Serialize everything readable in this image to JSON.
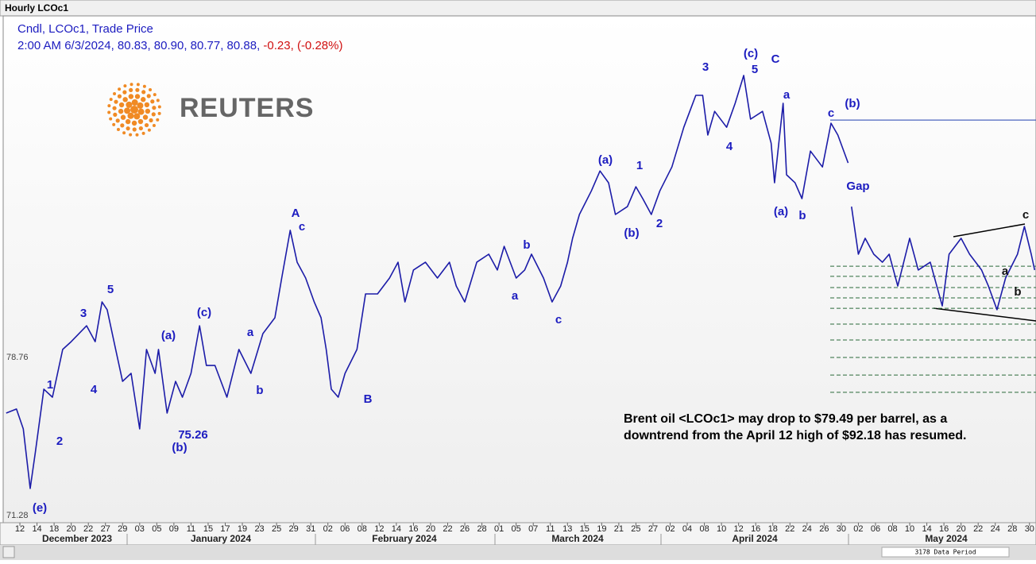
{
  "window_title": "Hourly LCOc1",
  "legend": {
    "name": "Cndl, LCOc1, Trade Price",
    "quote": "2:00 AM 6/3/2024, 80.83, 80.90, 80.77, 80.88,",
    "change": "-0.23, (-0.28%)"
  },
  "logo": "REUTERS",
  "status": "3178 Data Period",
  "chart_data": {
    "type": "line",
    "color": "#1c1ca8",
    "annotation_text": [
      "Brent oil <LCOc1> may drop to $79.49 per barrel, as a",
      "downtrend from the April 12 high of $92.18 has resumed."
    ],
    "wave_labels": [
      "(e)",
      "1",
      "2",
      "3",
      "4",
      "5",
      "(a)",
      "(b)",
      "75.26",
      "(c)",
      "a",
      "b",
      "A",
      "c",
      "B",
      "b",
      "a",
      "c",
      "(a)",
      "(b)",
      "1",
      "2",
      "3",
      "(c)",
      "5",
      "C",
      "4",
      "a",
      "c",
      "(b)",
      "(a)",
      "b",
      "Gap",
      "c",
      "a",
      "b"
    ],
    "months": [
      "December 2023",
      "January 2024",
      "February 2024",
      "March 2024",
      "April 2024",
      "May 2024"
    ],
    "x": [
      -0.8,
      -0.2,
      0.2,
      0.6,
      0.9,
      1.4,
      1.9,
      2.5,
      3.0,
      3.9,
      4.4,
      4.8,
      5.1,
      5.6,
      6.0,
      6.5,
      7.0,
      7.4,
      7.9,
      8.1,
      8.6,
      9.1,
      9.5,
      10.0,
      10.5,
      10.9,
      11.4,
      12.1,
      12.8,
      13.5,
      14.2,
      14.9,
      15.3,
      15.8,
      16.2,
      16.7,
      17.2,
      17.6,
      17.9,
      18.2,
      18.6,
      19.0,
      19.7,
      20.2,
      20.9,
      21.6,
      22.1,
      22.5,
      23.0,
      23.7,
      24.4,
      25.1,
      25.5,
      26.0,
      26.7,
      27.4,
      27.9,
      28.3,
      29.0,
      29.5,
      29.9,
      30.6,
      31.1,
      31.6,
      32.0,
      32.3,
      32.7,
      33.4,
      33.9,
      34.4,
      34.8,
      35.5,
      36.0,
      36.4,
      36.9,
      37.4,
      38.1,
      38.8,
      39.5,
      39.9,
      40.2,
      40.6,
      41.3,
      41.8,
      42.3,
      42.7,
      43.4,
      43.9,
      44.1,
      44.6,
      44.8,
      45.3,
      45.7,
      46.2,
      46.9,
      47.4,
      47.8,
      48.4,
      48.5,
      48.6,
      49.0,
      49.4,
      49.9,
      50.4,
      50.8,
      51.3,
      52.0,
      52.5,
      53.2,
      53.9,
      54.3,
      55.0,
      55.5,
      56.2,
      56.6,
      57.1,
      57.6,
      58.3,
      58.7,
      59.1,
      59.3
    ],
    "values": [
      76.13,
      76.32,
      75.38,
      72.56,
      74.25,
      77.26,
      76.88,
      79.14,
      79.51,
      80.26,
      79.51,
      81.39,
      81.02,
      79.14,
      77.63,
      78.01,
      75.38,
      79.14,
      78.01,
      79.14,
      76.13,
      77.63,
      76.88,
      78.01,
      80.26,
      78.38,
      78.38,
      76.88,
      79.14,
      78.01,
      79.89,
      80.64,
      82.52,
      84.78,
      83.27,
      82.52,
      81.39,
      80.64,
      79.14,
      77.26,
      76.88,
      78.01,
      79.14,
      81.77,
      81.77,
      82.52,
      83.27,
      81.39,
      82.9,
      83.27,
      82.52,
      83.27,
      82.14,
      81.39,
      83.27,
      83.65,
      82.9,
      84.02,
      82.52,
      82.9,
      83.65,
      82.52,
      81.39,
      82.14,
      83.27,
      84.4,
      85.53,
      86.65,
      87.59,
      87.03,
      85.53,
      85.9,
      86.84,
      86.28,
      85.53,
      86.65,
      87.78,
      89.66,
      91.17,
      91.17,
      89.29,
      90.41,
      89.66,
      90.79,
      92.11,
      90.04,
      90.41,
      88.91,
      87.03,
      90.79,
      87.41,
      87.03,
      86.28,
      88.53,
      87.78,
      89.85,
      89.29,
      87.97,
      null,
      85.9,
      83.65,
      84.4,
      83.65,
      83.27,
      83.65,
      82.14,
      84.4,
      82.9,
      83.27,
      81.2,
      83.65,
      84.4,
      83.65,
      82.9,
      82.14,
      81.02,
      82.52,
      83.65,
      84.96,
      83.65,
      82.9
    ],
    "wave_b_level": 90.0,
    "dashed_levels": [
      83.08,
      82.6,
      82.07,
      81.58,
      81.09,
      80.34,
      79.59,
      78.76,
      77.93,
      77.11
    ],
    "xlim": [
      -0.93,
      59.38
    ],
    "ylim": [
      70.94,
      94.93
    ],
    "yticks": [
      78.76,
      71.28
    ],
    "xticks": [
      {
        "value": 0,
        "label": "12"
      },
      {
        "value": 1,
        "label": "14"
      },
      {
        "value": 2,
        "label": "18"
      },
      {
        "value": 3,
        "label": "20"
      },
      {
        "value": 4,
        "label": "22"
      },
      {
        "value": 5,
        "label": "27"
      },
      {
        "value": 6,
        "label": "29"
      },
      {
        "value": 7,
        "label": "03"
      },
      {
        "value": 8,
        "label": "05"
      },
      {
        "value": 9,
        "label": "09"
      },
      {
        "value": 10,
        "label": "11"
      },
      {
        "value": 11,
        "label": "15"
      },
      {
        "value": 12,
        "label": "17"
      },
      {
        "value": 13,
        "label": "19"
      },
      {
        "value": 14,
        "label": "23"
      },
      {
        "value": 15,
        "label": "25"
      },
      {
        "value": 16,
        "label": "29"
      },
      {
        "value": 17,
        "label": "31"
      },
      {
        "value": 18,
        "label": "02"
      },
      {
        "value": 19,
        "label": "06"
      },
      {
        "value": 20,
        "label": "08"
      },
      {
        "value": 21,
        "label": "12"
      },
      {
        "value": 22,
        "label": "14"
      },
      {
        "value": 23,
        "label": "16"
      },
      {
        "value": 24,
        "label": "20"
      },
      {
        "value": 25,
        "label": "22"
      },
      {
        "value": 26,
        "label": "26"
      },
      {
        "value": 27,
        "label": "28"
      },
      {
        "value": 28,
        "label": "01"
      },
      {
        "value": 29,
        "label": "05"
      },
      {
        "value": 30,
        "label": "07"
      },
      {
        "value": 31,
        "label": "11"
      },
      {
        "value": 32,
        "label": "13"
      },
      {
        "value": 33,
        "label": "15"
      },
      {
        "value": 34,
        "label": "19"
      },
      {
        "value": 35,
        "label": "21"
      },
      {
        "value": 36,
        "label": "25"
      },
      {
        "value": 37,
        "label": "27"
      },
      {
        "value": 38,
        "label": "02"
      },
      {
        "value": 39,
        "label": "04"
      },
      {
        "value": 40,
        "label": "08"
      },
      {
        "value": 41,
        "label": "10"
      },
      {
        "value": 42,
        "label": "12"
      },
      {
        "value": 43,
        "label": "16"
      },
      {
        "value": 44,
        "label": "18"
      },
      {
        "value": 45,
        "label": "22"
      },
      {
        "value": 46,
        "label": "24"
      },
      {
        "value": 47,
        "label": "26"
      },
      {
        "value": 48,
        "label": "30"
      },
      {
        "value": 49,
        "label": "02"
      },
      {
        "value": 50,
        "label": "06"
      },
      {
        "value": 51,
        "label": "08"
      },
      {
        "value": 52,
        "label": "10"
      },
      {
        "value": 53,
        "label": "14"
      },
      {
        "value": 54,
        "label": "16"
      },
      {
        "value": 55,
        "label": "20"
      },
      {
        "value": 56,
        "label": "22"
      },
      {
        "value": 57,
        "label": "24"
      },
      {
        "value": 58,
        "label": "28"
      },
      {
        "value": 59,
        "label": "30"
      }
    ]
  }
}
